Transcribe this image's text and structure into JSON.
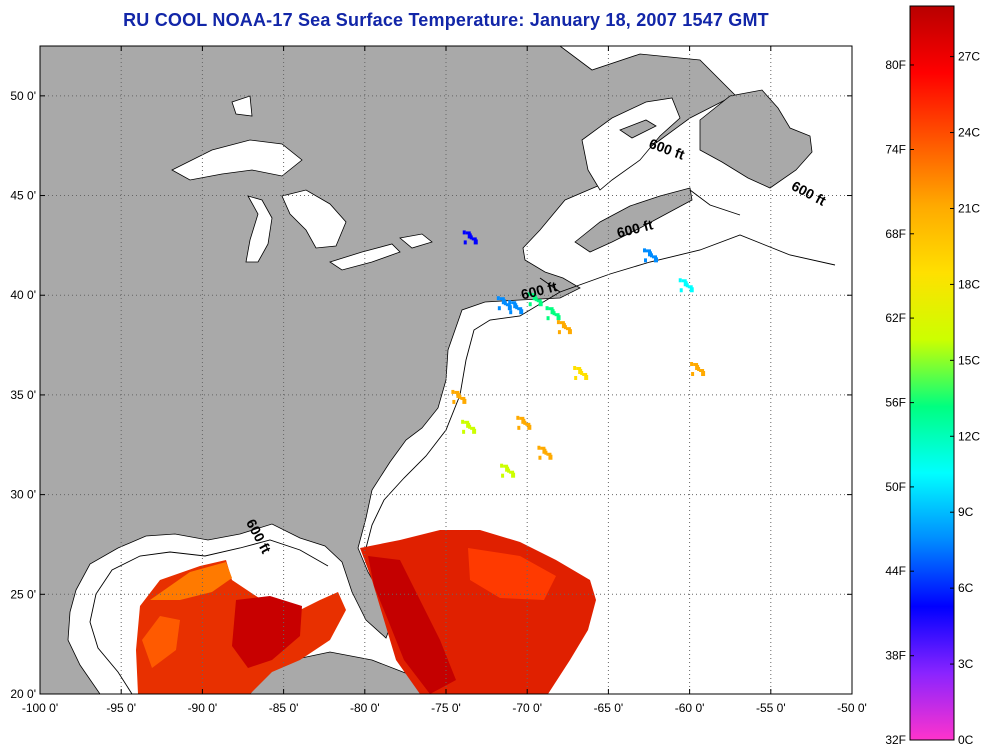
{
  "title": "RU COOL  NOAA-17  Sea Surface Temperature:  January 18, 2007 1547 GMT",
  "map": {
    "lon_range": [
      -100,
      -50
    ],
    "lat_range": [
      20,
      52.5
    ],
    "lon_ticks": [
      {
        "value": -100,
        "label": "-100 0'"
      },
      {
        "value": -95,
        "label": "-95 0'"
      },
      {
        "value": -90,
        "label": "-90 0'"
      },
      {
        "value": -85,
        "label": "-85 0'"
      },
      {
        "value": -80,
        "label": "-80 0'"
      },
      {
        "value": -75,
        "label": "-75 0'"
      },
      {
        "value": -70,
        "label": "-70 0'"
      },
      {
        "value": -65,
        "label": "-65 0'"
      },
      {
        "value": -60,
        "label": "-60 0'"
      },
      {
        "value": -55,
        "label": "-55 0'"
      },
      {
        "value": -50,
        "label": "-50 0'"
      }
    ],
    "lat_ticks": [
      {
        "value": 20,
        "label": "20 0'"
      },
      {
        "value": 25,
        "label": "25 0'"
      },
      {
        "value": 30,
        "label": "30 0'"
      },
      {
        "value": 35,
        "label": "35 0'"
      },
      {
        "value": 40,
        "label": "40 0'"
      },
      {
        "value": 45,
        "label": "45 0'"
      },
      {
        "value": 50,
        "label": "50 0'"
      }
    ],
    "grid": true,
    "colors": {
      "land": "#a9a9a9",
      "water": "#ffffff",
      "grid": "#555555"
    },
    "contour_labels": [
      {
        "text": "600 ft",
        "lon": -61.5,
        "lat": 47.1,
        "angle": 20
      },
      {
        "text": "600 ft",
        "lon": -52.8,
        "lat": 44.9,
        "angle": 28
      },
      {
        "text": "600 ft",
        "lon": -63.3,
        "lat": 43.1,
        "angle": -14
      },
      {
        "text": "600 ft",
        "lon": -69.2,
        "lat": 40.0,
        "angle": -14
      },
      {
        "text": "600 ft",
        "lon": -86.8,
        "lat": 27.8,
        "angle": 62
      }
    ]
  },
  "colorbar": {
    "min_c": 0,
    "max_c": 29,
    "colors": [
      "#ff33cc",
      "#8a24ff",
      "#0000ff",
      "#008cff",
      "#00ffff",
      "#00ff80",
      "#ccff00",
      "#ffe000",
      "#ffaa00",
      "#ff5500",
      "#ff0000",
      "#b80000"
    ],
    "celsius_ticks": [
      {
        "value": 0,
        "label": "0C"
      },
      {
        "value": 3,
        "label": "3C"
      },
      {
        "value": 6,
        "label": "6C"
      },
      {
        "value": 9,
        "label": "9C"
      },
      {
        "value": 12,
        "label": "12C"
      },
      {
        "value": 15,
        "label": "15C"
      },
      {
        "value": 18,
        "label": "18C"
      },
      {
        "value": 21,
        "label": "21C"
      },
      {
        "value": 24,
        "label": "24C"
      },
      {
        "value": 27,
        "label": "27C"
      }
    ],
    "fahrenheit_ticks": [
      {
        "value_c": 0,
        "label": "32F"
      },
      {
        "value_c": 3.33,
        "label": "38F"
      },
      {
        "value_c": 6.67,
        "label": "44F"
      },
      {
        "value_c": 10,
        "label": "50F"
      },
      {
        "value_c": 13.33,
        "label": "56F"
      },
      {
        "value_c": 16.67,
        "label": "62F"
      },
      {
        "value_c": 20,
        "label": "68F"
      },
      {
        "value_c": 23.33,
        "label": "74F"
      },
      {
        "value_c": 26.67,
        "label": "80F"
      }
    ]
  },
  "sst_patches": [
    {
      "lon": -73.6,
      "lat": 43.0,
      "c": 6
    },
    {
      "lon": -71.5,
      "lat": 39.7,
      "c": 7
    },
    {
      "lon": -70.8,
      "lat": 39.5,
      "c": 9
    },
    {
      "lon": -69.6,
      "lat": 39.9,
      "c": 12
    },
    {
      "lon": -68.5,
      "lat": 39.2,
      "c": 13
    },
    {
      "lon": -60.3,
      "lat": 40.6,
      "c": 10
    },
    {
      "lon": -62.5,
      "lat": 42.1,
      "c": 9
    },
    {
      "lon": -74.3,
      "lat": 35.0,
      "c": 21
    },
    {
      "lon": -70.3,
      "lat": 33.7,
      "c": 22
    },
    {
      "lon": -71.3,
      "lat": 31.3,
      "c": 17
    },
    {
      "lon": -69.0,
      "lat": 32.2,
      "c": 21
    },
    {
      "lon": -66.8,
      "lat": 36.2,
      "c": 19
    },
    {
      "lon": -67.8,
      "lat": 38.5,
      "c": 21
    },
    {
      "lon": -59.6,
      "lat": 36.4,
      "c": 22
    },
    {
      "lon": -73.7,
      "lat": 33.5,
      "c": 16
    }
  ]
}
